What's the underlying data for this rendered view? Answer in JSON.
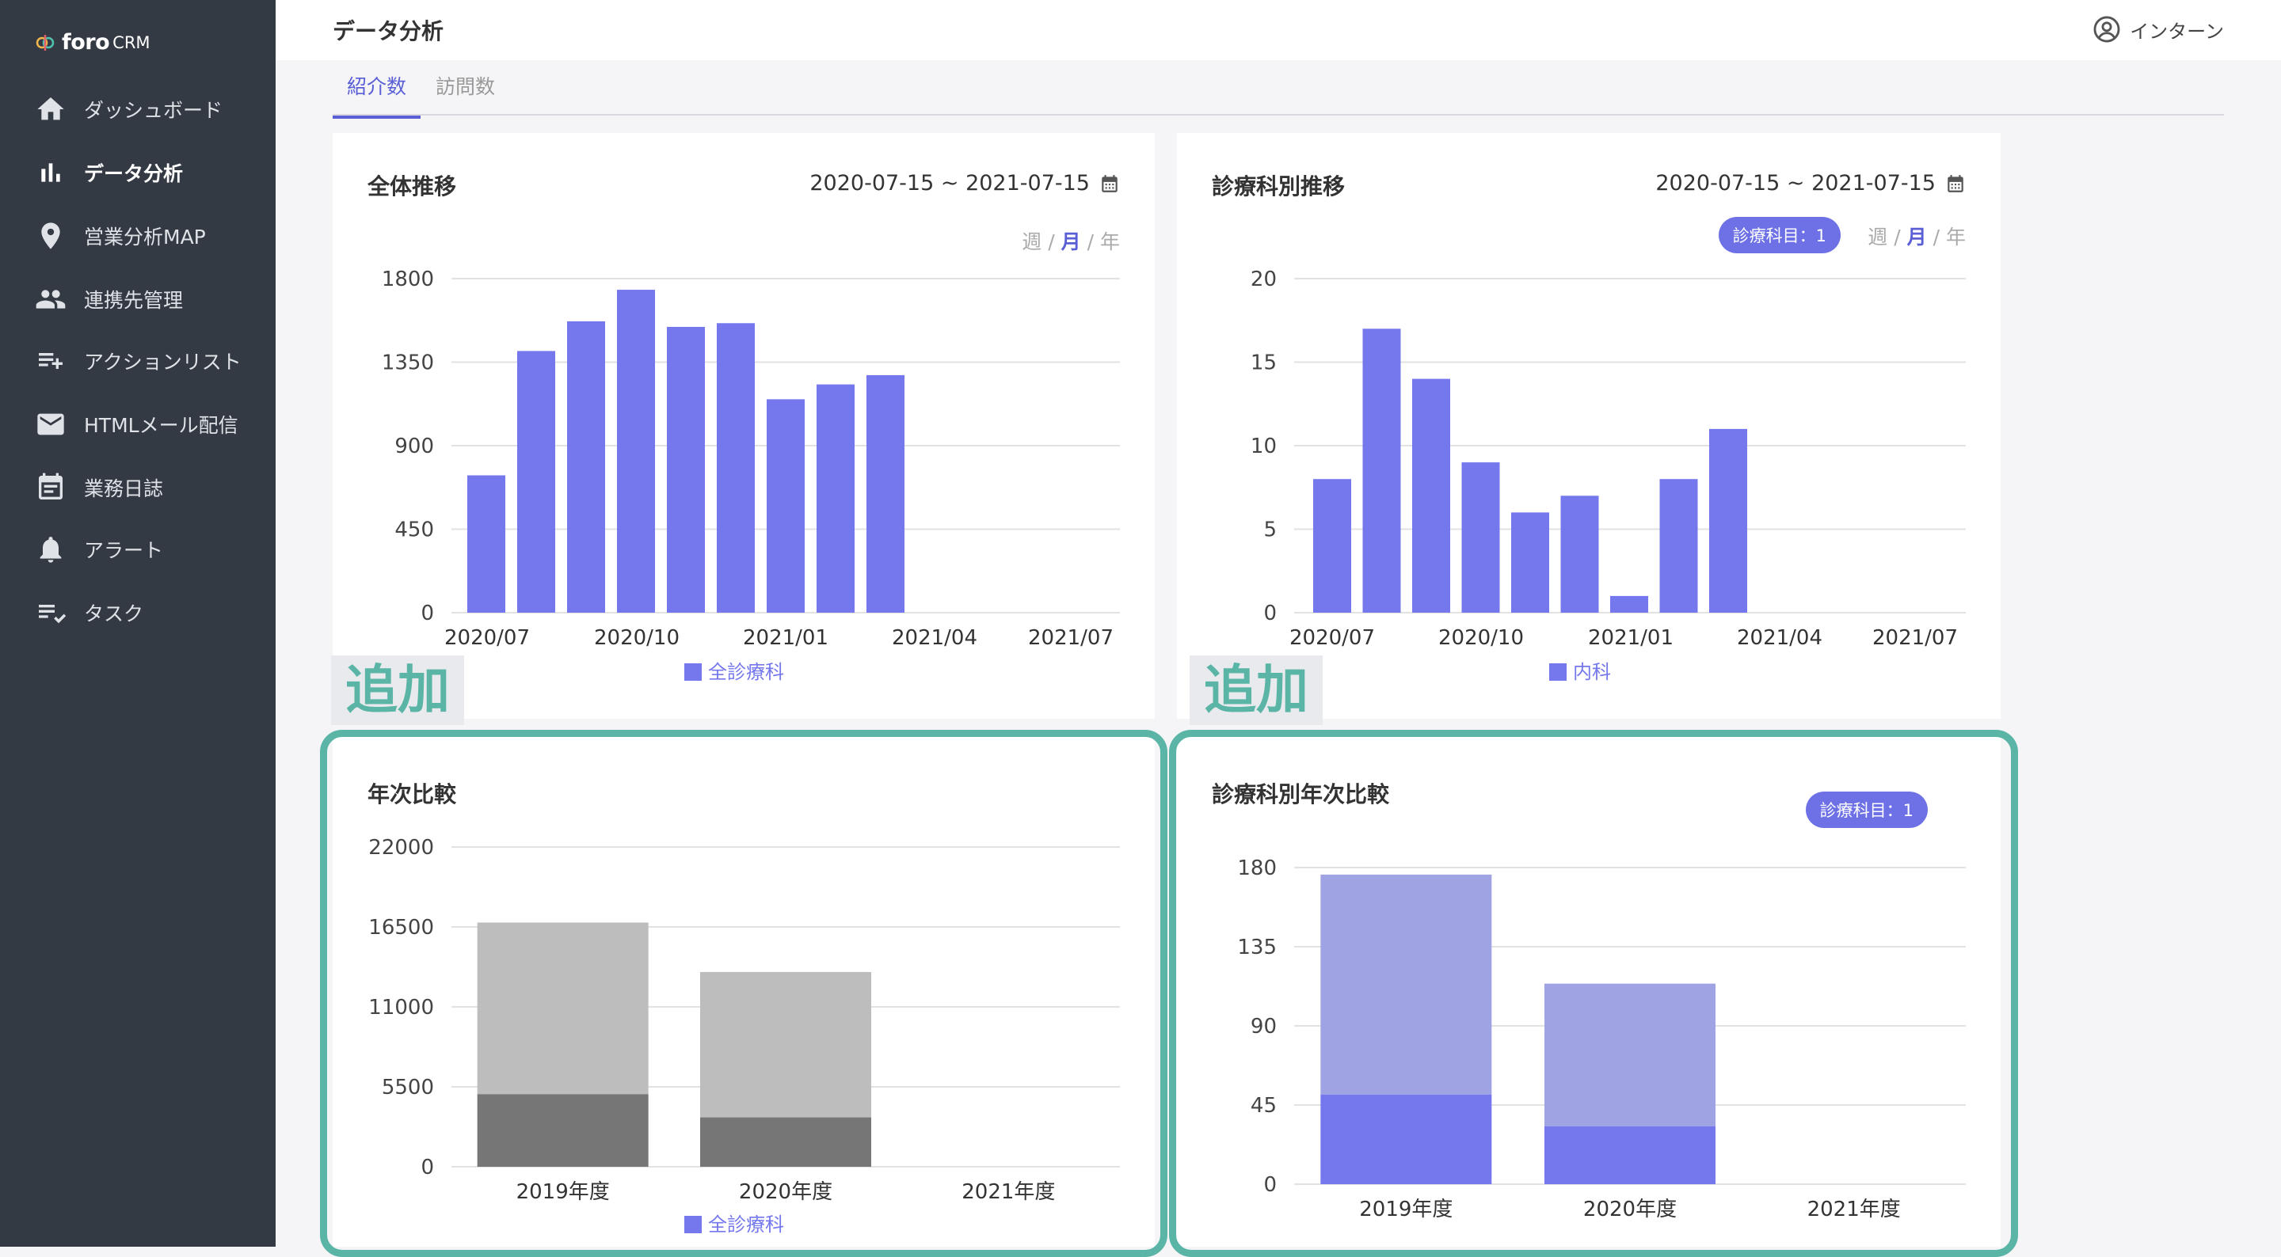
{
  "app": {
    "logo_main": "foro",
    "logo_sub": "CRM"
  },
  "sidebar": {
    "items": [
      {
        "label": "ダッシュボード",
        "icon": "home-icon"
      },
      {
        "label": "データ分析",
        "icon": "bar-chart-icon",
        "active": true
      },
      {
        "label": "営業分析MAP",
        "icon": "map-pin-icon"
      },
      {
        "label": "連携先管理",
        "icon": "people-icon"
      },
      {
        "label": "アクションリスト",
        "icon": "playlist-add-icon"
      },
      {
        "label": "HTMLメール配信",
        "icon": "mail-icon"
      },
      {
        "label": "業務日誌",
        "icon": "calendar-icon"
      },
      {
        "label": "アラート",
        "icon": "bell-icon"
      },
      {
        "label": "タスク",
        "icon": "task-check-icon"
      }
    ]
  },
  "header": {
    "title": "データ分析",
    "user": "インターン"
  },
  "tabs": [
    {
      "label": "紹介数",
      "active": true
    },
    {
      "label": "訪問数",
      "active": false
    }
  ],
  "cards": {
    "overall": {
      "title": "全体推移",
      "date_range": "2020-07-15 ~ 2021-07-15",
      "period": {
        "week": "週",
        "month": "月",
        "year": "年",
        "sep": "/"
      }
    },
    "dept": {
      "title": "診療科別推移",
      "date_range": "2020-07-15 ~ 2021-07-15",
      "pill": "診療科目：1",
      "period": {
        "week": "週",
        "month": "月",
        "year": "年",
        "sep": "/"
      }
    },
    "yearly": {
      "title": "年次比較"
    },
    "dept_yearly": {
      "title": "診療科別年次比較",
      "pill": "診療科目：1"
    }
  },
  "annotations": {
    "added": "追加"
  },
  "colors": {
    "accent": "#5a5fd6",
    "bar": "#7478ec",
    "teal": "#5bb5a6",
    "bar_light": "#a0a3e3",
    "gray_light": "#bdbdbd",
    "gray_dark": "#767676"
  },
  "chart_data": [
    {
      "type": "bar",
      "x_tick_labels": [
        "2020/07",
        "2020/10",
        "2021/01",
        "2021/04",
        "2021/07"
      ],
      "values": [
        740,
        1410,
        1570,
        1740,
        1540,
        1560,
        1150,
        1230,
        1280
      ],
      "y_ticks": [
        0,
        450,
        900,
        1350,
        1800
      ],
      "ylim": [
        0,
        1800
      ],
      "legend": [
        "全診療科"
      ],
      "color": "#7478ec"
    },
    {
      "type": "bar",
      "x_tick_labels": [
        "2020/07",
        "2020/10",
        "2021/01",
        "2021/04",
        "2021/07"
      ],
      "values": [
        8,
        17,
        14,
        9,
        6,
        7,
        1,
        8,
        11
      ],
      "y_ticks": [
        0,
        5,
        10,
        15,
        20
      ],
      "ylim": [
        0,
        20
      ],
      "legend": [
        "内科"
      ],
      "color": "#7478ec"
    },
    {
      "type": "bar",
      "stacked": true,
      "categories": [
        "2019年度",
        "2020年度",
        "2021年度"
      ],
      "series": [
        {
          "values": [
            5000,
            3400,
            0
          ],
          "color": "#767676"
        },
        {
          "values": [
            11800,
            10000,
            0
          ],
          "color": "#bdbdbd"
        }
      ],
      "y_ticks": [
        0,
        5500,
        11000,
        16500,
        22000
      ],
      "ylim": [
        0,
        22000
      ],
      "legend": [
        "全診療科"
      ]
    },
    {
      "type": "bar",
      "stacked": true,
      "categories": [
        "2019年度",
        "2020年度",
        "2021年度"
      ],
      "series": [
        {
          "values": [
            51,
            33,
            0
          ],
          "color": "#7478ec"
        },
        {
          "values": [
            125,
            81,
            0
          ],
          "color": "#a0a3e3"
        }
      ],
      "y_ticks": [
        0,
        45,
        90,
        135,
        180
      ],
      "ylim": [
        0,
        180
      ]
    }
  ]
}
